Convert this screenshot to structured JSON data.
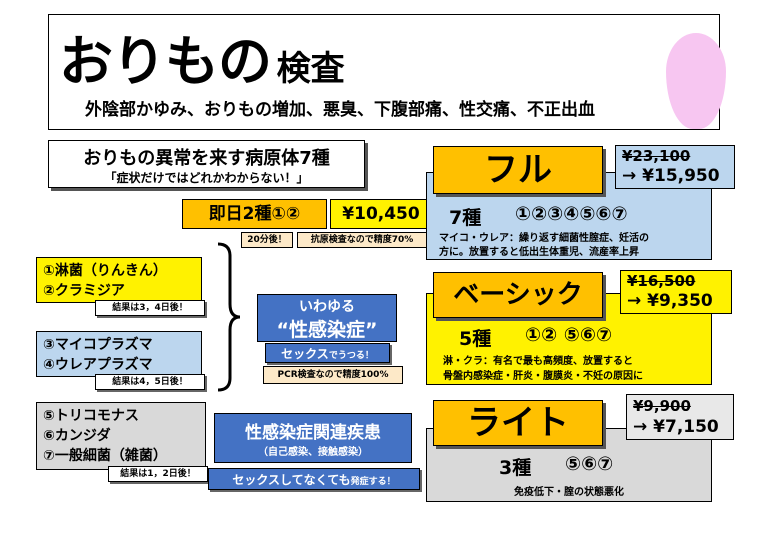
{
  "header": {
    "title_main": "おりもの",
    "title_suffix": "検査",
    "subtitle": "外陰部かゆみ、おりもの増加、悪臭、下腹部痛、性交痛、不正出血"
  },
  "pathogens": {
    "title": "おりもの異常を来す病原体7種",
    "subtitle": "「症状だけではどれかわからない！」"
  },
  "same_day": {
    "label": "即日2種①②",
    "price": "¥10,450",
    "note_time": "20分後！",
    "note_accuracy": "抗原検査なので精度70%"
  },
  "groups": [
    {
      "lines": [
        "①淋菌（りんきん）",
        "②クラミジア"
      ],
      "result": "結果は3，4日後！",
      "color": "#fff200"
    },
    {
      "lines": [
        "③マイコプラズマ",
        "④ウレアプラズマ"
      ],
      "result": "結果は4，5日後！",
      "color": "#bcd6ee"
    },
    {
      "lines": [
        "⑤トリコモナス",
        "⑥カンジダ",
        "⑦一般細菌（雑菌）"
      ],
      "result": "結果は1，2日後！",
      "color": "#d9d9d9"
    }
  ],
  "std": {
    "pre": "いわゆる",
    "title": "“性感染症”",
    "sub_main": "セックス",
    "sub_small": "でうつる！",
    "pcr": "PCR検査なので精度100%"
  },
  "related": {
    "title": "性感染症関連疾患",
    "sub": "（自己感染、接触感染）",
    "note_main": "セックスしてなくても",
    "note_small": "発症する！"
  },
  "plans": [
    {
      "name": "フル",
      "old_price": "¥23,100",
      "new_price": "→ ¥15,950",
      "count": "7種",
      "nums": "①②③④⑤⑥⑦",
      "desc": [
        "マイコ・ウレア：繰り返す細菌性腟症、妊活の",
        "方に。放置すると低出生体重児、流産率上昇"
      ],
      "box_color": "#bcd6ee",
      "price_color": "#bcd6ee"
    },
    {
      "name": "ベーシック",
      "old_price": "¥16,500",
      "new_price": "→ ¥9,350",
      "count": "5種",
      "nums": "①② ⑤⑥⑦",
      "desc": [
        "淋・クラ：有名で最も高頻度、放置すると",
        "骨盤内感染症・肝炎・腹膜炎・不妊の原因に"
      ],
      "box_color": "#fff200",
      "price_color": "#fff200"
    },
    {
      "name": "ライト",
      "old_price": "¥9,900",
      "new_price": "→ ¥7,150",
      "count": "3種",
      "nums": "⑤⑥⑦",
      "desc": [
        "免疫低下・腟の状態悪化"
      ],
      "box_color": "#d9d9d9",
      "price_color": "#e8e8e8"
    }
  ],
  "colors": {
    "orange": "#ffc000",
    "yellow": "#fff200",
    "blue_dark": "#4472c4",
    "blue_light": "#bcd6ee",
    "gray": "#d9d9d9",
    "peach": "#fde9c8",
    "pink": "#f7c6f1"
  }
}
